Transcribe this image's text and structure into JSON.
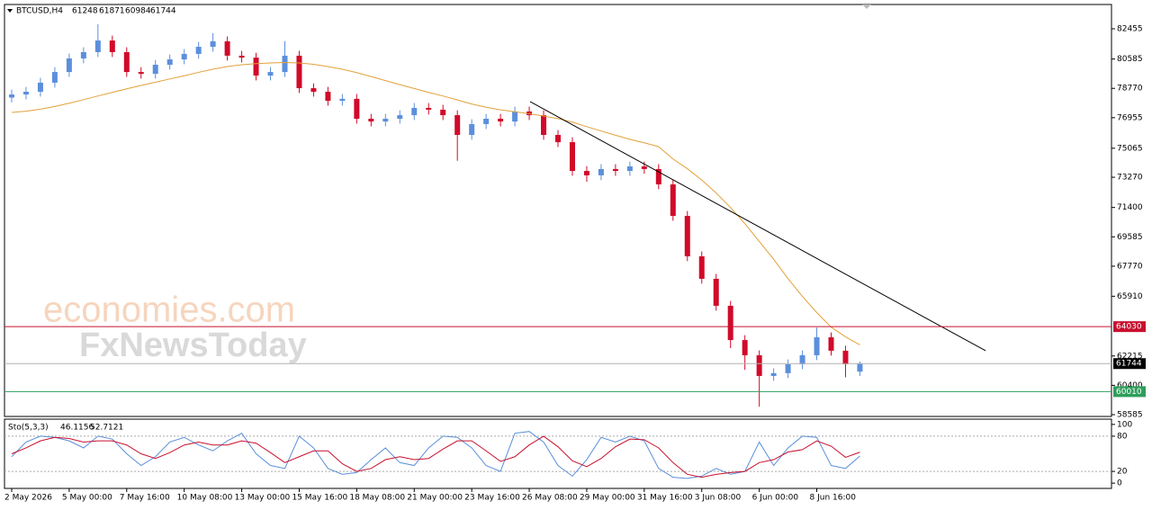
{
  "watermark": [
    "economies.com",
    "FxNewsToday"
  ],
  "chart_data": [
    {
      "type": "candlestick",
      "title": "BTCUSD,H4",
      "up_color": "#5b8fdc",
      "down_color": "#d10a2a",
      "xlim": [
        -0.5,
        76.5
      ],
      "ylim": [
        58474,
        83957
      ],
      "yticks": [
        82455,
        80585,
        78770,
        76955,
        75065,
        73270,
        71400,
        69585,
        67770,
        65910,
        62215,
        60400,
        58585
      ],
      "open": [
        78200,
        78390,
        78560,
        79120,
        79780,
        80620,
        81010,
        81730,
        81010,
        79780,
        79670,
        80230,
        80560,
        80900,
        81340,
        81680,
        80790,
        80670,
        79560,
        79780,
        80790,
        78780,
        78560,
        78000,
        78120,
        76890,
        76720,
        76890,
        77110,
        77560,
        77450,
        77110,
        75890,
        76560,
        76890,
        76720,
        77340,
        77110,
        75890,
        75440,
        73660,
        73390,
        73780,
        73660,
        73940,
        73780,
        72830,
        70880,
        68380,
        66990,
        65320,
        63200,
        62260,
        60980,
        61150,
        61700,
        62260,
        63370,
        62540,
        61248
      ],
      "high": [
        78690,
        78860,
        79420,
        80080,
        80920,
        81310,
        82730,
        82030,
        81310,
        80080,
        80530,
        80860,
        81200,
        81640,
        82180,
        81980,
        81090,
        80970,
        80080,
        81690,
        81090,
        79080,
        78860,
        78420,
        78420,
        77190,
        77190,
        77410,
        77860,
        77860,
        77750,
        77410,
        76860,
        77190,
        77190,
        77640,
        77640,
        77410,
        76190,
        75740,
        73960,
        74080,
        74080,
        74240,
        74240,
        74080,
        73130,
        71180,
        68680,
        67290,
        65620,
        63500,
        62560,
        61450,
        62000,
        62560,
        63970,
        63670,
        62840,
        61871
      ],
      "low": [
        77900,
        78090,
        78260,
        78820,
        79480,
        80320,
        80710,
        80710,
        79480,
        79370,
        79370,
        79930,
        80260,
        80600,
        81040,
        80490,
        80370,
        79260,
        79260,
        79480,
        78480,
        78260,
        77700,
        77700,
        76590,
        76420,
        76420,
        76590,
        76810,
        77150,
        76810,
        74290,
        75590,
        76260,
        76420,
        76420,
        76810,
        75590,
        75140,
        73360,
        72990,
        73090,
        73360,
        73360,
        73480,
        72530,
        70580,
        68080,
        66690,
        65020,
        62700,
        61360,
        59080,
        60680,
        60850,
        61400,
        61960,
        62240,
        60900,
        60984
      ],
      "close": [
        78390,
        78560,
        79120,
        79780,
        80620,
        81010,
        81730,
        81010,
        79780,
        79670,
        80230,
        80560,
        80900,
        81340,
        81680,
        80790,
        80670,
        79560,
        79780,
        80790,
        78780,
        78560,
        78000,
        78120,
        76890,
        76720,
        76890,
        77110,
        77560,
        77450,
        77110,
        75890,
        76560,
        76890,
        76720,
        77340,
        77110,
        75890,
        75440,
        73660,
        73390,
        73780,
        73660,
        73940,
        73780,
        72830,
        70880,
        68380,
        66990,
        65320,
        63200,
        62260,
        60980,
        61150,
        61700,
        62260,
        63370,
        62540,
        61700,
        61744
      ],
      "ma": {
        "color": "#e3a03a",
        "values": [
          77280,
          77360,
          77480,
          77650,
          77850,
          78070,
          78300,
          78520,
          78740,
          78950,
          79150,
          79350,
          79550,
          79760,
          79960,
          80120,
          80230,
          80300,
          80340,
          80370,
          80340,
          80260,
          80120,
          79950,
          79740,
          79500,
          79250,
          79000,
          78760,
          78520,
          78300,
          78050,
          77800,
          77600,
          77440,
          77320,
          77200,
          77060,
          76900,
          76680,
          76400,
          76130,
          75870,
          75620,
          75400,
          75160,
          74400,
          73800,
          73100,
          72300,
          71400,
          70400,
          69300,
          68200,
          67000,
          65900,
          64900,
          64000,
          63400,
          62900
        ]
      },
      "trendline": {
        "color": "#000000",
        "x": [
          36.06,
          67.75
        ],
        "y": [
          77948,
          62536
        ]
      },
      "last_color": "#b0b0b0",
      "levels": [
        {
          "value": 64030,
          "color": "#c8102e"
        },
        {
          "value": 60010,
          "color": "#2e9e5b"
        }
      ]
    },
    {
      "type": "line",
      "title": "Sto(5,3,3)",
      "xlim": [
        -0.5,
        76.5
      ],
      "ylim": [
        -9,
        109
      ],
      "yticks": [
        100,
        80,
        20,
        0
      ],
      "dashed_levels": [
        80,
        20
      ],
      "xticks": [
        {
          "value": 0,
          "label": "2 May 2026"
        },
        {
          "value": 4,
          "label": "5 May 00:00"
        },
        {
          "value": 8,
          "label": "7 May 16:00"
        },
        {
          "value": 12,
          "label": "10 May 08:00"
        },
        {
          "value": 16,
          "label": "13 May 00:00"
        },
        {
          "value": 20,
          "label": "15 May 16:00"
        },
        {
          "value": 24,
          "label": "18 May 08:00"
        },
        {
          "value": 28,
          "label": "21 May 00:00"
        },
        {
          "value": 32,
          "label": "23 May 16:00"
        },
        {
          "value": 36,
          "label": "26 May 08:00"
        },
        {
          "value": 40,
          "label": "29 May 00:00"
        },
        {
          "value": 44,
          "label": "31 May 16:00"
        },
        {
          "value": 48,
          "label": "3 Jun 08:00"
        },
        {
          "value": 52,
          "label": "6 Jun 00:00"
        },
        {
          "value": 56,
          "label": "8 Jun 16:00"
        }
      ],
      "series": [
        {
          "color": "#5a8fd8",
          "values": [
            45,
            70,
            80,
            78,
            72,
            60,
            80,
            75,
            50,
            30,
            45,
            70,
            78,
            65,
            55,
            72,
            85,
            50,
            30,
            25,
            80,
            60,
            25,
            15,
            18,
            40,
            60,
            35,
            30,
            60,
            80,
            78,
            60,
            30,
            20,
            85,
            88,
            70,
            30,
            12,
            40,
            78,
            70,
            80,
            72,
            25,
            10,
            8,
            12,
            25,
            15,
            20,
            70,
            30,
            60,
            80,
            78,
            30,
            25,
            46.1156
          ]
        },
        {
          "color": "#c8102e",
          "values": [
            50,
            60,
            72,
            78,
            76,
            70,
            72,
            72,
            65,
            50,
            42,
            52,
            65,
            70,
            65,
            65,
            72,
            68,
            52,
            35,
            45,
            55,
            55,
            33,
            20,
            25,
            40,
            45,
            40,
            42,
            58,
            72,
            72,
            55,
            37,
            45,
            65,
            80,
            62,
            38,
            28,
            42,
            62,
            75,
            74,
            60,
            35,
            15,
            10,
            15,
            18,
            20,
            35,
            40,
            53,
            57,
            72,
            63,
            44,
            52.7121
          ]
        }
      ]
    }
  ]
}
